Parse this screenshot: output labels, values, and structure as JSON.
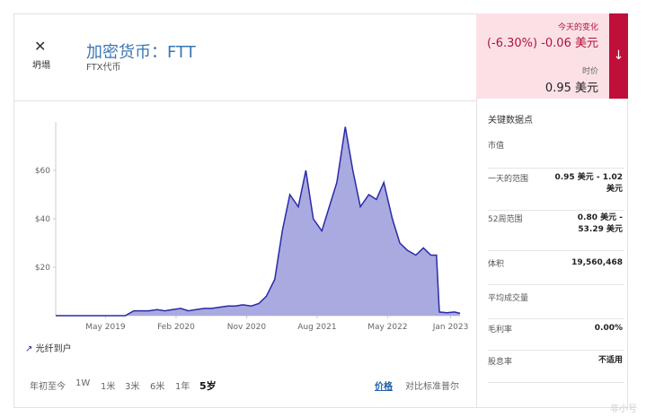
{
  "header": {
    "icon_label": "坍塌",
    "title": "加密货币：FTT",
    "subtitle": "FTX代币"
  },
  "change": {
    "label": "今天的变化",
    "value": "(-6.30%) -0.06 美元",
    "price_label": "时价",
    "price": "0.95 美元"
  },
  "chart_data": {
    "type": "area",
    "legend": "光纤到户",
    "color": "#2a2aa8",
    "fill": "#a9aadf",
    "x": [
      2018.8,
      2018.88,
      2018.96,
      2019.04,
      2019.13,
      2019.21,
      2019.29,
      2019.38,
      2019.46,
      2019.54,
      2019.63,
      2019.71,
      2019.79,
      2019.88,
      2019.96,
      2020.04,
      2020.13,
      2020.21,
      2020.29,
      2020.38,
      2020.46,
      2020.54,
      2020.63,
      2020.71,
      2020.79,
      2020.88,
      2020.96,
      2021.04,
      2021.13,
      2021.21,
      2021.29,
      2021.38,
      2021.46,
      2021.54,
      2021.63,
      2021.71,
      2021.79,
      2021.88,
      2021.96,
      2022.04,
      2022.13,
      2022.21,
      2022.29,
      2022.38,
      2022.46,
      2022.54,
      2022.63,
      2022.71,
      2022.79,
      2022.85,
      2022.88,
      2022.96,
      2023.04,
      2023.1
    ],
    "series": [
      {
        "name": "FTT",
        "values": [
          0,
          0,
          0,
          0,
          0,
          0,
          0,
          0,
          0,
          0,
          2,
          2,
          2,
          2.5,
          2,
          2.5,
          3,
          2,
          2.5,
          3,
          3,
          3.5,
          4,
          4,
          4.5,
          4,
          5,
          8,
          15,
          35,
          50,
          45,
          60,
          40,
          35,
          45,
          55,
          78,
          60,
          45,
          50,
          48,
          55,
          40,
          30,
          27,
          25,
          28,
          25,
          25,
          1.5,
          1.2,
          1.5,
          0.95
        ]
      }
    ],
    "xlim": [
      2018.8,
      2023.1
    ],
    "xticks": [
      {
        "value": 2019.33,
        "label": "May 2019"
      },
      {
        "value": 2020.08,
        "label": "Feb 2020"
      },
      {
        "value": 2020.83,
        "label": "Nov 2020"
      },
      {
        "value": 2021.58,
        "label": "Aug 2021"
      },
      {
        "value": 2022.33,
        "label": "May 2022"
      },
      {
        "value": 2023.0,
        "label": "Jan 2023"
      }
    ],
    "ylim": [
      0,
      80
    ],
    "yticks": [
      {
        "value": 20,
        "label": "$20"
      },
      {
        "value": 40,
        "label": "$40"
      },
      {
        "value": 60,
        "label": "$60"
      }
    ]
  },
  "ranges": [
    "年初至今",
    "1W",
    "1米",
    "3米",
    "6米",
    "1年",
    "5岁"
  ],
  "selected_range": "5岁",
  "links": [
    "价格",
    "对比标准普尔"
  ],
  "key_data": {
    "title": "关键数据点",
    "rows": [
      {
        "label": "市值",
        "value": null
      },
      {
        "label": "一天的范围",
        "value": "0.95 美元 - 1.02 美元"
      },
      {
        "label": "52周范围",
        "value": "0.80 美元 - 53.29 美元"
      },
      {
        "label": "体积",
        "value": "19,560,468"
      },
      {
        "label": "平均成交量",
        "value": null
      },
      {
        "label": "毛利率",
        "value": "0.00%"
      },
      {
        "label": "股息率",
        "value": "不适用"
      }
    ]
  },
  "watermark": "非小号"
}
